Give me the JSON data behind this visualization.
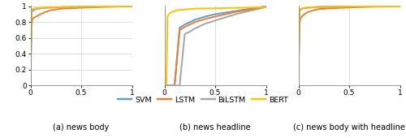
{
  "colors": {
    "SVM": "#5B9BD5",
    "LSTM": "#ED7D31",
    "BiLSTM": "#A5A5A5",
    "BERT": "#FFC000"
  },
  "linewidth": 1.4,
  "subplot_labels": [
    "(a) news body",
    "(b) news headline",
    "(c) news body with headline"
  ],
  "legend_labels": [
    "SVM",
    "LSTM",
    "BiLSTM",
    "BERT"
  ],
  "xlim": [
    0,
    1
  ],
  "ylim": [
    0,
    1.01
  ],
  "xticks": [
    0,
    0.5,
    1
  ],
  "yticks": [
    0,
    0.2,
    0.4,
    0.6,
    0.8,
    1
  ],
  "grid_color": "#D8D8D8",
  "roc_a": {
    "SVM": [
      [
        0,
        0
      ],
      [
        0.01,
        0.92
      ],
      [
        0.02,
        0.94
      ],
      [
        0.05,
        0.965
      ],
      [
        0.1,
        0.975
      ],
      [
        0.15,
        0.982
      ],
      [
        0.3,
        0.988
      ],
      [
        0.5,
        0.993
      ],
      [
        0.7,
        0.997
      ],
      [
        1.0,
        1.0
      ]
    ],
    "LSTM": [
      [
        0,
        0
      ],
      [
        0.01,
        0.75
      ],
      [
        0.02,
        0.84
      ],
      [
        0.04,
        0.86
      ],
      [
        0.07,
        0.88
      ],
      [
        0.1,
        0.9
      ],
      [
        0.15,
        0.93
      ],
      [
        0.2,
        0.95
      ],
      [
        0.3,
        0.97
      ],
      [
        0.5,
        0.982
      ],
      [
        0.7,
        0.991
      ],
      [
        1.0,
        1.0
      ]
    ],
    "BiLSTM": [
      [
        0,
        0
      ],
      [
        0.01,
        0.93
      ],
      [
        0.02,
        0.95
      ],
      [
        0.05,
        0.965
      ],
      [
        0.1,
        0.977
      ],
      [
        0.2,
        0.985
      ],
      [
        0.5,
        0.993
      ],
      [
        0.7,
        0.997
      ],
      [
        1.0,
        1.0
      ]
    ],
    "BERT": [
      [
        0,
        0
      ],
      [
        0.01,
        0.95
      ],
      [
        0.02,
        0.965
      ],
      [
        0.05,
        0.975
      ],
      [
        0.1,
        0.983
      ],
      [
        0.2,
        0.99
      ],
      [
        0.5,
        0.996
      ],
      [
        1.0,
        1.0
      ]
    ]
  },
  "roc_b": {
    "BERT": [
      [
        0,
        0
      ],
      [
        0.02,
        0.0
      ],
      [
        0.03,
        0.87
      ],
      [
        0.05,
        0.91
      ],
      [
        0.08,
        0.93
      ],
      [
        0.12,
        0.95
      ],
      [
        0.2,
        0.96
      ],
      [
        0.3,
        0.97
      ],
      [
        0.5,
        0.975
      ],
      [
        0.7,
        0.98
      ],
      [
        1.0,
        0.99
      ]
    ],
    "SVM": [
      [
        0,
        0
      ],
      [
        0.1,
        0.0
      ],
      [
        0.15,
        0.73
      ],
      [
        0.2,
        0.77
      ],
      [
        0.25,
        0.8
      ],
      [
        0.3,
        0.83
      ],
      [
        0.35,
        0.85
      ],
      [
        0.4,
        0.87
      ],
      [
        0.5,
        0.9
      ],
      [
        0.6,
        0.92
      ],
      [
        0.7,
        0.94
      ],
      [
        0.8,
        0.96
      ],
      [
        0.9,
        0.98
      ],
      [
        1.0,
        1.0
      ]
    ],
    "LSTM": [
      [
        0,
        0
      ],
      [
        0.1,
        0.0
      ],
      [
        0.15,
        0.7
      ],
      [
        0.2,
        0.74
      ],
      [
        0.25,
        0.77
      ],
      [
        0.3,
        0.8
      ],
      [
        0.35,
        0.82
      ],
      [
        0.4,
        0.84
      ],
      [
        0.5,
        0.87
      ],
      [
        0.6,
        0.9
      ],
      [
        0.7,
        0.93
      ],
      [
        0.8,
        0.95
      ],
      [
        0.9,
        0.97
      ],
      [
        1.0,
        1.0
      ]
    ],
    "BiLSTM": [
      [
        0,
        0
      ],
      [
        0.15,
        0.0
      ],
      [
        0.2,
        0.65
      ],
      [
        0.25,
        0.68
      ],
      [
        0.3,
        0.72
      ],
      [
        0.35,
        0.75
      ],
      [
        0.4,
        0.78
      ],
      [
        0.5,
        0.82
      ],
      [
        0.6,
        0.86
      ],
      [
        0.7,
        0.9
      ],
      [
        0.8,
        0.93
      ],
      [
        0.9,
        0.96
      ],
      [
        1.0,
        0.99
      ]
    ]
  },
  "roc_c": {
    "SVM": [
      [
        0,
        0
      ],
      [
        0.01,
        0.93
      ],
      [
        0.02,
        0.96
      ],
      [
        0.05,
        0.975
      ],
      [
        0.1,
        0.984
      ],
      [
        0.2,
        0.991
      ],
      [
        0.5,
        0.996
      ],
      [
        1.0,
        1.0
      ]
    ],
    "LSTM": [
      [
        0,
        0
      ],
      [
        0.01,
        0.76
      ],
      [
        0.02,
        0.85
      ],
      [
        0.04,
        0.88
      ],
      [
        0.07,
        0.91
      ],
      [
        0.1,
        0.93
      ],
      [
        0.15,
        0.95
      ],
      [
        0.2,
        0.965
      ],
      [
        0.35,
        0.977
      ],
      [
        0.5,
        0.985
      ],
      [
        0.7,
        0.993
      ],
      [
        1.0,
        1.0
      ]
    ],
    "BiLSTM": [
      [
        0,
        0
      ],
      [
        0.01,
        0.93
      ],
      [
        0.02,
        0.96
      ],
      [
        0.05,
        0.977
      ],
      [
        0.1,
        0.985
      ],
      [
        0.2,
        0.992
      ],
      [
        0.5,
        0.996
      ],
      [
        1.0,
        1.0
      ]
    ],
    "BERT": [
      [
        0,
        0
      ],
      [
        0.01,
        0.95
      ],
      [
        0.02,
        0.967
      ],
      [
        0.05,
        0.978
      ],
      [
        0.1,
        0.986
      ],
      [
        0.2,
        0.993
      ],
      [
        0.5,
        0.997
      ],
      [
        1.0,
        1.0
      ]
    ]
  }
}
